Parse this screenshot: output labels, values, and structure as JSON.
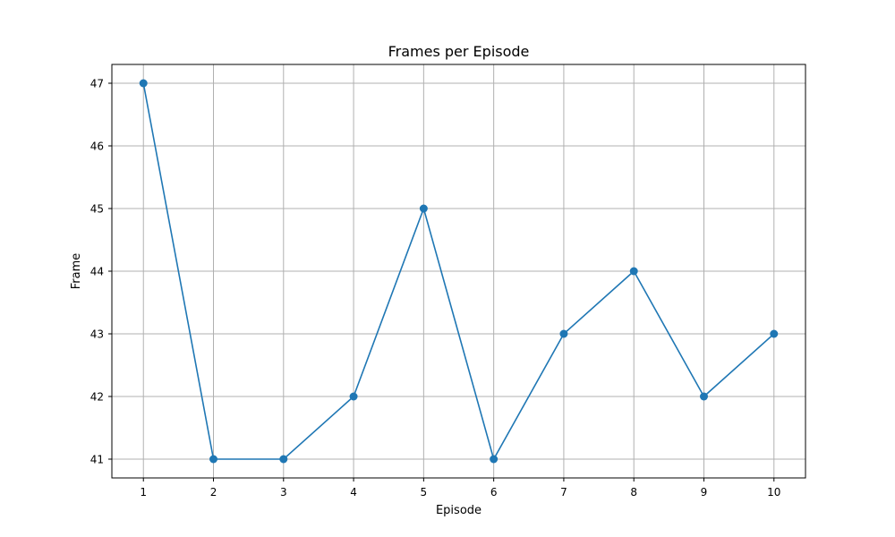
{
  "chart_data": {
    "type": "line",
    "title": "Frames per Episode",
    "xlabel": "Episode",
    "ylabel": "Frame",
    "x": [
      1,
      2,
      3,
      4,
      5,
      6,
      7,
      8,
      9,
      10
    ],
    "series": [
      {
        "values": [
          47,
          41,
          41,
          42,
          45,
          41,
          43,
          44,
          42,
          43
        ],
        "color": "#1f77b4",
        "marker": "circle"
      }
    ],
    "xlim": [
      0.55,
      10.45
    ],
    "ylim": [
      40.7,
      47.3
    ],
    "xticks": [
      "1",
      "2",
      "3",
      "4",
      "5",
      "6",
      "7",
      "8",
      "9",
      "10"
    ],
    "yticks": [
      "41",
      "42",
      "43",
      "44",
      "45",
      "46",
      "47"
    ],
    "grid": true,
    "colors": {
      "grid": "#b0b0b0",
      "axes": "#000000",
      "background": "#ffffff"
    }
  }
}
